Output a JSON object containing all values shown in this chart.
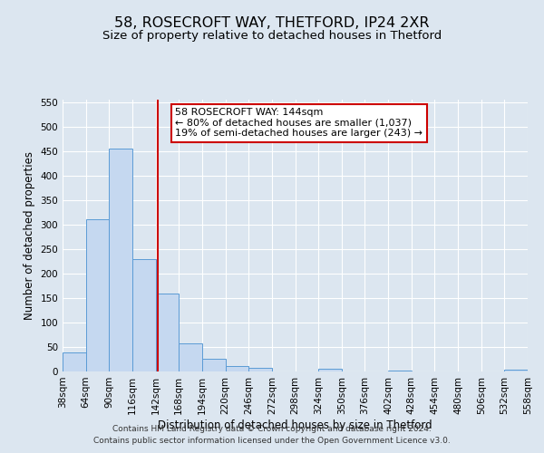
{
  "title": "58, ROSECROFT WAY, THETFORD, IP24 2XR",
  "subtitle": "Size of property relative to detached houses in Thetford",
  "xlabel": "Distribution of detached houses by size in Thetford",
  "ylabel": "Number of detached properties",
  "bin_edges": [
    38,
    64,
    90,
    116,
    142,
    168,
    194,
    220,
    246,
    272,
    298,
    324,
    350,
    376,
    402,
    428,
    454,
    480,
    506,
    532,
    558
  ],
  "bar_heights": [
    38,
    310,
    456,
    230,
    160,
    57,
    25,
    11,
    7,
    0,
    0,
    5,
    0,
    0,
    2,
    0,
    0,
    0,
    0,
    3
  ],
  "bar_color": "#c5d8f0",
  "bar_edge_color": "#5b9bd5",
  "vline_x": 144,
  "vline_color": "#cc0000",
  "annotation_line1": "58 ROSECROFT WAY: 144sqm",
  "annotation_line2": "← 80% of detached houses are smaller (1,037)",
  "annotation_line3": "19% of semi-detached houses are larger (243) →",
  "annotation_box_edge_color": "#cc0000",
  "ylim": [
    0,
    555
  ],
  "yticks": [
    0,
    50,
    100,
    150,
    200,
    250,
    300,
    350,
    400,
    450,
    500,
    550
  ],
  "footer_line1": "Contains HM Land Registry data © Crown copyright and database right 2024.",
  "footer_line2": "Contains public sector information licensed under the Open Government Licence v3.0.",
  "background_color": "#dce6f0",
  "plot_bg_color": "#dce6f0",
  "grid_color": "#ffffff",
  "title_fontsize": 11.5,
  "subtitle_fontsize": 9.5,
  "axis_label_fontsize": 8.5,
  "tick_fontsize": 7.5,
  "annotation_fontsize": 8,
  "footer_fontsize": 6.5
}
